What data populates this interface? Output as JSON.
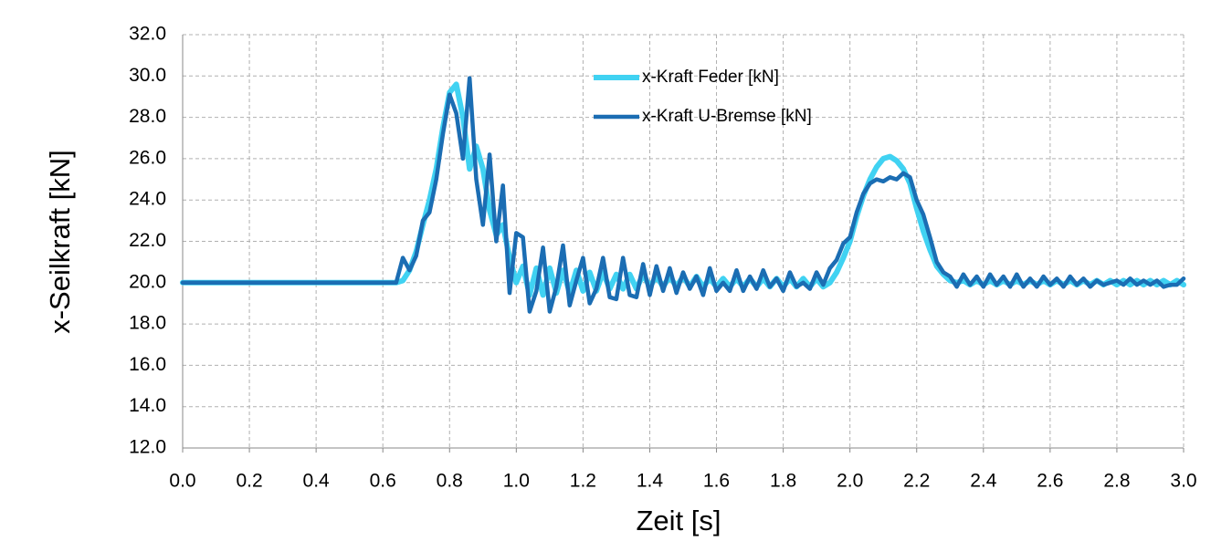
{
  "chart_data": {
    "type": "line",
    "x_label": "Zeit [s]",
    "y_label": "x-Seilkraft [kN]",
    "x": [
      0,
      0.2,
      0.4,
      0.6,
      0.64,
      0.66,
      0.68,
      0.7,
      0.72,
      0.74,
      0.76,
      0.78,
      0.8,
      0.82,
      0.84,
      0.86,
      0.88,
      0.9,
      0.92,
      0.94,
      0.96,
      0.98,
      1.0,
      1.02,
      1.04,
      1.06,
      1.08,
      1.1,
      1.12,
      1.14,
      1.16,
      1.18,
      1.2,
      1.22,
      1.24,
      1.26,
      1.28,
      1.3,
      1.32,
      1.34,
      1.36,
      1.38,
      1.4,
      1.42,
      1.44,
      1.46,
      1.48,
      1.5,
      1.52,
      1.54,
      1.56,
      1.58,
      1.6,
      1.62,
      1.64,
      1.66,
      1.68,
      1.7,
      1.72,
      1.74,
      1.76,
      1.78,
      1.8,
      1.82,
      1.84,
      1.86,
      1.88,
      1.9,
      1.92,
      1.94,
      1.96,
      1.98,
      2.0,
      2.02,
      2.04,
      2.06,
      2.08,
      2.1,
      2.12,
      2.14,
      2.16,
      2.18,
      2.2,
      2.22,
      2.24,
      2.26,
      2.28,
      2.3,
      2.32,
      2.34,
      2.36,
      2.38,
      2.4,
      2.42,
      2.44,
      2.46,
      2.48,
      2.5,
      2.52,
      2.54,
      2.56,
      2.58,
      2.6,
      2.62,
      2.64,
      2.66,
      2.68,
      2.7,
      2.72,
      2.74,
      2.76,
      2.78,
      2.8,
      2.82,
      2.84,
      2.86,
      2.88,
      2.9,
      2.92,
      2.94,
      2.96,
      2.98,
      3.0
    ],
    "series": [
      {
        "name": "x-Kraft Feder [kN]",
        "color": "#40d2f2",
        "values": [
          20,
          20,
          20,
          20,
          20.0,
          20.1,
          20.6,
          21.5,
          22.8,
          24.0,
          25.5,
          27.5,
          29.2,
          29.6,
          28.0,
          25.5,
          26.6,
          25.5,
          23.5,
          22.3,
          22.8,
          21.2,
          20.0,
          20.8,
          19.4,
          20.7,
          19.4,
          20.7,
          19.5,
          20.6,
          19.5,
          20.6,
          19.6,
          20.5,
          19.6,
          20.5,
          19.7,
          20.4,
          19.7,
          20.4,
          19.7,
          20.4,
          19.8,
          20.3,
          19.8,
          20.3,
          19.8,
          20.3,
          19.8,
          20.3,
          19.8,
          20.2,
          19.8,
          20.2,
          19.8,
          20.2,
          19.8,
          20.2,
          19.8,
          20.2,
          19.8,
          20.2,
          19.8,
          20.2,
          19.8,
          20.2,
          19.8,
          20.2,
          19.8,
          20.0,
          20.5,
          21.2,
          22.0,
          23.2,
          24.2,
          25.0,
          25.6,
          26.0,
          26.1,
          25.9,
          25.5,
          24.8,
          23.6,
          22.5,
          21.6,
          20.8,
          20.4,
          20.1,
          20.0,
          20.1,
          19.9,
          20.1,
          19.9,
          20.1,
          19.9,
          20.1,
          19.9,
          20.1,
          19.9,
          20.1,
          19.9,
          20.1,
          19.9,
          20.1,
          19.9,
          20.1,
          19.9,
          20.1,
          19.9,
          20.1,
          19.9,
          20.1,
          19.9,
          20.1,
          19.9,
          20.1,
          19.9,
          20.1,
          19.9,
          20.1,
          19.9,
          20.1,
          19.9
        ]
      },
      {
        "name": "x-Kraft U-Bremse [kN]",
        "color": "#1b6db3",
        "values": [
          20,
          20,
          20,
          20,
          20.0,
          21.2,
          20.6,
          21.3,
          23.0,
          23.4,
          25.0,
          27.2,
          29.1,
          28.2,
          26.0,
          29.9,
          25.0,
          22.8,
          26.2,
          22.0,
          24.7,
          19.5,
          22.4,
          22.2,
          18.6,
          19.6,
          21.7,
          18.6,
          19.8,
          21.8,
          18.9,
          20.1,
          21.2,
          19.0,
          19.7,
          21.2,
          19.3,
          19.2,
          21.2,
          19.4,
          19.3,
          20.9,
          19.4,
          20.8,
          19.6,
          20.7,
          19.5,
          20.5,
          19.7,
          20.3,
          19.4,
          20.7,
          19.6,
          20.0,
          19.6,
          20.6,
          19.6,
          20.3,
          19.7,
          20.6,
          19.8,
          20.2,
          19.6,
          20.5,
          19.8,
          20.0,
          19.7,
          20.5,
          19.9,
          20.7,
          21.1,
          21.9,
          22.2,
          23.4,
          24.3,
          24.8,
          25.0,
          24.9,
          25.1,
          25.0,
          25.3,
          25.1,
          24.0,
          23.3,
          22.2,
          21.0,
          20.5,
          20.3,
          19.8,
          20.4,
          19.9,
          20.3,
          19.8,
          20.4,
          19.9,
          20.3,
          19.8,
          20.4,
          19.8,
          20.2,
          19.8,
          20.3,
          19.9,
          20.2,
          19.8,
          20.3,
          19.9,
          20.2,
          19.8,
          20.1,
          19.9,
          20.0,
          20.1,
          19.9,
          20.2,
          19.9,
          20.1,
          19.9,
          20.1,
          19.8,
          19.9,
          19.9,
          20.2
        ]
      }
    ],
    "xlim": [
      0,
      3.0
    ],
    "xticks": [
      {
        "value": 0,
        "label": "0.0"
      },
      {
        "value": 0.2,
        "label": "0.2"
      },
      {
        "value": 0.4,
        "label": "0.4"
      },
      {
        "value": 0.6,
        "label": "0.6"
      },
      {
        "value": 0.8,
        "label": "0.8"
      },
      {
        "value": 1.0,
        "label": "1.0"
      },
      {
        "value": 1.2,
        "label": "1.2"
      },
      {
        "value": 1.4,
        "label": "1.4"
      },
      {
        "value": 1.6,
        "label": "1.6"
      },
      {
        "value": 1.8,
        "label": "1.8"
      },
      {
        "value": 2.0,
        "label": "2.0"
      },
      {
        "value": 2.2,
        "label": "2.2"
      },
      {
        "value": 2.4,
        "label": "2.4"
      },
      {
        "value": 2.6,
        "label": "2.6"
      },
      {
        "value": 2.8,
        "label": "2.8"
      },
      {
        "value": 3.0,
        "label": "3.0"
      }
    ],
    "ylim": [
      12,
      32
    ],
    "yticks": [
      {
        "value": 12,
        "label": "12.0"
      },
      {
        "value": 14,
        "label": "14.0"
      },
      {
        "value": 16,
        "label": "16.0"
      },
      {
        "value": 18,
        "label": "18.0"
      },
      {
        "value": 20,
        "label": "20.0"
      },
      {
        "value": 22,
        "label": "22.0"
      },
      {
        "value": 24,
        "label": "24.0"
      },
      {
        "value": 26,
        "label": "26.0"
      },
      {
        "value": 28,
        "label": "28.0"
      },
      {
        "value": 30,
        "label": "30.0"
      },
      {
        "value": 32,
        "label": "32.0"
      }
    ],
    "grid": true,
    "legend": "top"
  }
}
